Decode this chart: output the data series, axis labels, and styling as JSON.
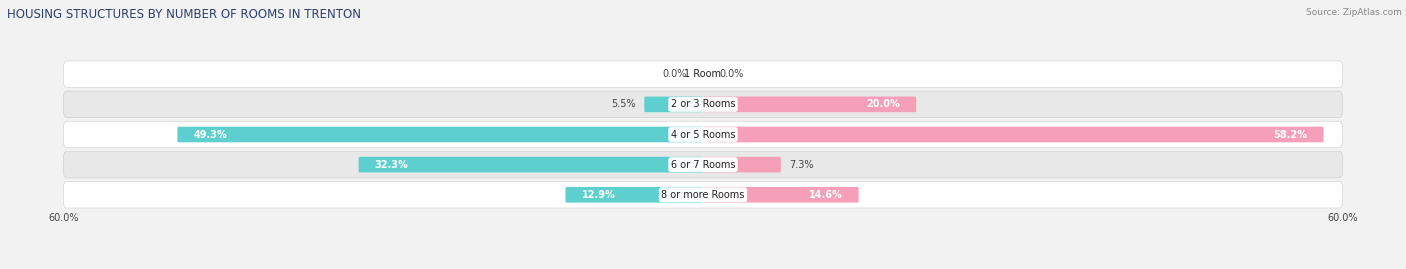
{
  "title": "HOUSING STRUCTURES BY NUMBER OF ROOMS IN TRENTON",
  "source": "Source: ZipAtlas.com",
  "categories": [
    "1 Room",
    "2 or 3 Rooms",
    "4 or 5 Rooms",
    "6 or 7 Rooms",
    "8 or more Rooms"
  ],
  "owner_values": [
    0.0,
    5.5,
    49.3,
    32.3,
    12.9
  ],
  "renter_values": [
    0.0,
    20.0,
    58.2,
    7.3,
    14.6
  ],
  "owner_color": "#5ecfcf",
  "renter_color": "#f5a0b8",
  "axis_max": 60.0,
  "bar_height": 0.52,
  "bg_color": "#f2f2f2",
  "row_bg_light": "#ffffff",
  "row_bg_dark": "#e8e8e8",
  "title_fontsize": 8.5,
  "label_fontsize": 7,
  "source_fontsize": 6.5,
  "title_color": "#2c3e6b",
  "label_color_dark": "#444444",
  "label_color_white": "#ffffff",
  "inside_threshold": 12.0,
  "cat_label_fontsize": 7
}
